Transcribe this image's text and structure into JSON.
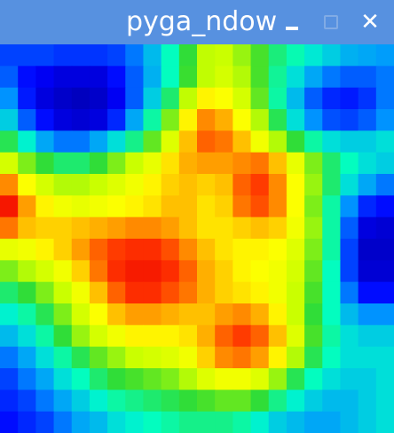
{
  "window": {
    "title": "pyga_ndow",
    "controls": {
      "minimize_icon": "minimize-icon",
      "maximize_icon": "maximize-icon",
      "close_icon": "close-icon",
      "close_glyph": "✕"
    }
  },
  "heatmap": {
    "colormap": [
      "#00008b",
      "#0000ff",
      "#0096ff",
      "#00ffc8",
      "#32dc32",
      "#c8ff00",
      "#ffff00",
      "#ffa000",
      "#ff3200",
      "#ee0000"
    ],
    "grid": [
      [
        0.16,
        0.16,
        0.16,
        0.15,
        0.15,
        0.15,
        0.16,
        0.2,
        0.26,
        0.34,
        0.44,
        0.55,
        0.56,
        0.52,
        0.46,
        0.39,
        0.35,
        0.31,
        0.28,
        0.25,
        0.24,
        0.23
      ],
      [
        0.18,
        0.12,
        0.1,
        0.08,
        0.08,
        0.08,
        0.12,
        0.18,
        0.25,
        0.34,
        0.45,
        0.55,
        0.58,
        0.54,
        0.46,
        0.37,
        0.3,
        0.24,
        0.2,
        0.18,
        0.18,
        0.2
      ],
      [
        0.22,
        0.13,
        0.08,
        0.06,
        0.05,
        0.06,
        0.1,
        0.18,
        0.28,
        0.4,
        0.55,
        0.68,
        0.66,
        0.58,
        0.48,
        0.36,
        0.26,
        0.18,
        0.14,
        0.13,
        0.15,
        0.2
      ],
      [
        0.28,
        0.18,
        0.12,
        0.08,
        0.07,
        0.08,
        0.14,
        0.24,
        0.36,
        0.5,
        0.68,
        0.8,
        0.76,
        0.66,
        0.54,
        0.42,
        0.3,
        0.22,
        0.17,
        0.16,
        0.18,
        0.22
      ],
      [
        0.42,
        0.32,
        0.24,
        0.2,
        0.2,
        0.24,
        0.3,
        0.38,
        0.48,
        0.6,
        0.74,
        0.84,
        0.82,
        0.74,
        0.64,
        0.54,
        0.44,
        0.36,
        0.3,
        0.28,
        0.28,
        0.3
      ],
      [
        0.58,
        0.5,
        0.44,
        0.4,
        0.4,
        0.44,
        0.5,
        0.56,
        0.62,
        0.7,
        0.76,
        0.78,
        0.78,
        0.8,
        0.82,
        0.74,
        0.62,
        0.5,
        0.4,
        0.34,
        0.3,
        0.28
      ],
      [
        0.8,
        0.66,
        0.58,
        0.54,
        0.54,
        0.56,
        0.6,
        0.64,
        0.68,
        0.72,
        0.74,
        0.72,
        0.74,
        0.84,
        0.88,
        0.8,
        0.66,
        0.52,
        0.4,
        0.3,
        0.24,
        0.2
      ],
      [
        0.95,
        0.78,
        0.68,
        0.64,
        0.62,
        0.64,
        0.66,
        0.68,
        0.7,
        0.74,
        0.74,
        0.7,
        0.72,
        0.82,
        0.86,
        0.8,
        0.66,
        0.5,
        0.36,
        0.22,
        0.14,
        0.12
      ],
      [
        0.82,
        0.74,
        0.72,
        0.72,
        0.74,
        0.76,
        0.78,
        0.8,
        0.8,
        0.78,
        0.74,
        0.7,
        0.7,
        0.72,
        0.74,
        0.72,
        0.64,
        0.52,
        0.36,
        0.18,
        0.08,
        0.07
      ],
      [
        0.62,
        0.64,
        0.68,
        0.72,
        0.78,
        0.84,
        0.88,
        0.9,
        0.9,
        0.86,
        0.8,
        0.74,
        0.7,
        0.68,
        0.68,
        0.66,
        0.6,
        0.5,
        0.36,
        0.16,
        0.06,
        0.06
      ],
      [
        0.5,
        0.54,
        0.58,
        0.64,
        0.72,
        0.82,
        0.9,
        0.94,
        0.94,
        0.9,
        0.84,
        0.76,
        0.72,
        0.68,
        0.66,
        0.64,
        0.58,
        0.48,
        0.34,
        0.16,
        0.07,
        0.07
      ],
      [
        0.4,
        0.44,
        0.5,
        0.56,
        0.64,
        0.74,
        0.84,
        0.9,
        0.9,
        0.86,
        0.82,
        0.76,
        0.72,
        0.7,
        0.68,
        0.64,
        0.56,
        0.46,
        0.34,
        0.2,
        0.12,
        0.12
      ],
      [
        0.32,
        0.36,
        0.42,
        0.5,
        0.58,
        0.66,
        0.74,
        0.78,
        0.78,
        0.76,
        0.74,
        0.74,
        0.78,
        0.8,
        0.76,
        0.68,
        0.56,
        0.44,
        0.34,
        0.26,
        0.22,
        0.22
      ],
      [
        0.26,
        0.3,
        0.36,
        0.44,
        0.52,
        0.58,
        0.64,
        0.68,
        0.68,
        0.68,
        0.7,
        0.76,
        0.84,
        0.88,
        0.84,
        0.74,
        0.6,
        0.46,
        0.36,
        0.3,
        0.28,
        0.28
      ],
      [
        0.2,
        0.24,
        0.3,
        0.36,
        0.42,
        0.48,
        0.52,
        0.56,
        0.58,
        0.6,
        0.64,
        0.72,
        0.8,
        0.82,
        0.78,
        0.68,
        0.54,
        0.42,
        0.34,
        0.3,
        0.3,
        0.3
      ],
      [
        0.16,
        0.2,
        0.24,
        0.3,
        0.34,
        0.4,
        0.44,
        0.46,
        0.48,
        0.5,
        0.54,
        0.6,
        0.64,
        0.64,
        0.6,
        0.52,
        0.42,
        0.34,
        0.3,
        0.28,
        0.28,
        0.3
      ],
      [
        0.14,
        0.16,
        0.2,
        0.24,
        0.28,
        0.32,
        0.36,
        0.38,
        0.4,
        0.42,
        0.44,
        0.46,
        0.48,
        0.48,
        0.44,
        0.38,
        0.32,
        0.28,
        0.26,
        0.26,
        0.28,
        0.3
      ],
      [
        0.12,
        0.14,
        0.16,
        0.2,
        0.24,
        0.26,
        0.3,
        0.32,
        0.34,
        0.36,
        0.38,
        0.38,
        0.38,
        0.36,
        0.32,
        0.28,
        0.26,
        0.24,
        0.24,
        0.26,
        0.28,
        0.3
      ]
    ]
  }
}
